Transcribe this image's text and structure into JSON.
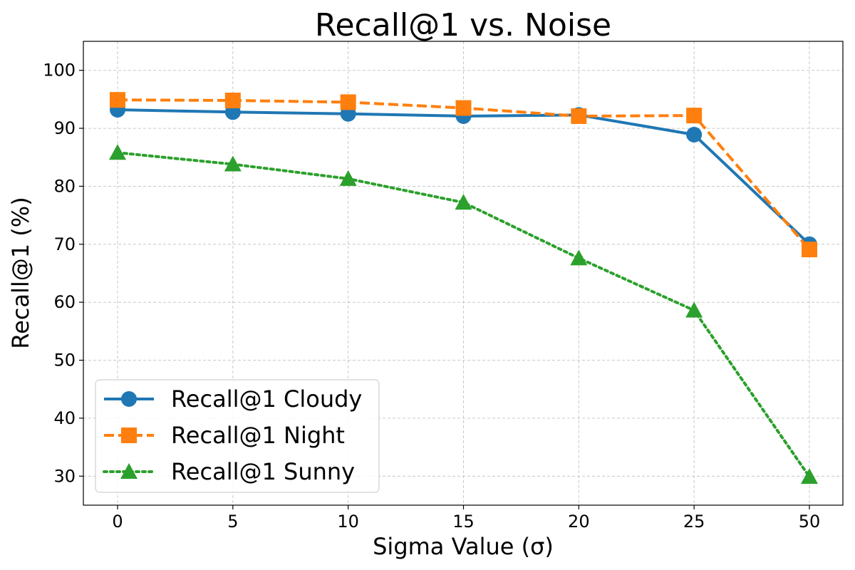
{
  "chart_data": {
    "type": "line",
    "title": "Recall@1 vs. Noise",
    "xlabel": "Sigma Value (σ)",
    "ylabel": "Recall@1 (%)",
    "categories": [
      "0",
      "5",
      "10",
      "15",
      "20",
      "25",
      "50"
    ],
    "ylim": [
      25,
      105
    ],
    "yticks": [
      30,
      40,
      50,
      60,
      70,
      80,
      90,
      100
    ],
    "grid": true,
    "legend_position": "bottom-left",
    "series": [
      {
        "name": "Recall@1 Cloudy",
        "values": [
          93.2,
          92.8,
          92.5,
          92.1,
          92.3,
          88.9,
          70.0
        ],
        "color": "#1f77b4",
        "line_style": "solid",
        "marker": "circle"
      },
      {
        "name": "Recall@1 Night",
        "values": [
          94.9,
          94.8,
          94.5,
          93.5,
          92.1,
          92.2,
          69.1
        ],
        "color": "#ff7f0e",
        "line_style": "dashed",
        "marker": "square"
      },
      {
        "name": "Recall@1 Sunny",
        "values": [
          85.8,
          83.8,
          81.3,
          77.2,
          67.6,
          58.6,
          29.9
        ],
        "color": "#2ca02c",
        "line_style": "dotted",
        "marker": "triangle"
      }
    ]
  }
}
